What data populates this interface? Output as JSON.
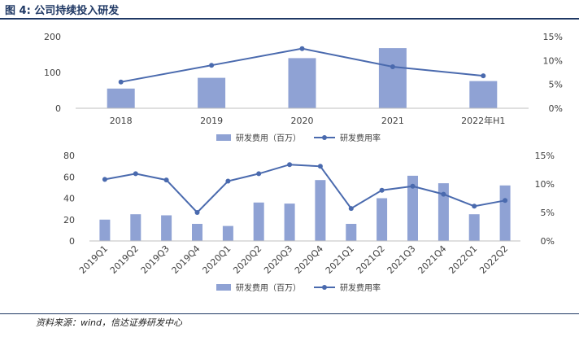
{
  "header": {
    "figure_title": "图 4:  公司持续投入研发"
  },
  "footer": {
    "source_note": "资料来源：wind，信达证券研发中心"
  },
  "colors": {
    "bar": "#8FA2D4",
    "line": "#4A6AAE",
    "title": "#1f3864"
  },
  "chart_data": [
    {
      "type": "bar+line",
      "categories": [
        "2018",
        "2019",
        "2020",
        "2021",
        "2022年H1"
      ],
      "y_left_ticks": [
        "0",
        "100",
        "200"
      ],
      "y_left_range": [
        0,
        200
      ],
      "y_right_ticks": [
        "0%",
        "5%",
        "10%",
        "15%"
      ],
      "y_right_range": [
        0,
        15
      ],
      "grid": false,
      "legend_position": "bottom",
      "series": [
        {
          "name": "研发费用（百万）",
          "kind": "bar",
          "axis": "left",
          "values": [
            55,
            85,
            140,
            168,
            76
          ]
        },
        {
          "name": "研发费用率",
          "kind": "line",
          "axis": "right",
          "values": [
            5.5,
            9.0,
            12.5,
            8.7,
            6.8
          ]
        }
      ]
    },
    {
      "type": "bar+line",
      "categories": [
        "2019Q1",
        "2019Q2",
        "2019Q3",
        "2019Q4",
        "2020Q1",
        "2020Q2",
        "2020Q3",
        "2020Q4",
        "2021Q1",
        "2021Q2",
        "2021Q3",
        "2021Q4",
        "2022Q1",
        "2022Q2"
      ],
      "y_left_ticks": [
        "0",
        "20",
        "40",
        "60",
        "80"
      ],
      "y_left_range": [
        0,
        80
      ],
      "y_right_ticks": [
        "0%",
        "5%",
        "10%",
        "15%"
      ],
      "y_right_range": [
        0,
        15
      ],
      "grid": false,
      "legend_position": "bottom",
      "series": [
        {
          "name": "研发费用（百万）",
          "kind": "bar",
          "axis": "left",
          "values": [
            20,
            25,
            24,
            16,
            14,
            36,
            35,
            57,
            16,
            40,
            61,
            54,
            25,
            52
          ]
        },
        {
          "name": "研发费用率",
          "kind": "line",
          "axis": "right",
          "values": [
            10.8,
            11.8,
            10.7,
            5.0,
            10.5,
            11.8,
            13.4,
            13.1,
            5.7,
            8.9,
            9.6,
            8.2,
            6.1,
            7.1
          ]
        }
      ]
    }
  ]
}
